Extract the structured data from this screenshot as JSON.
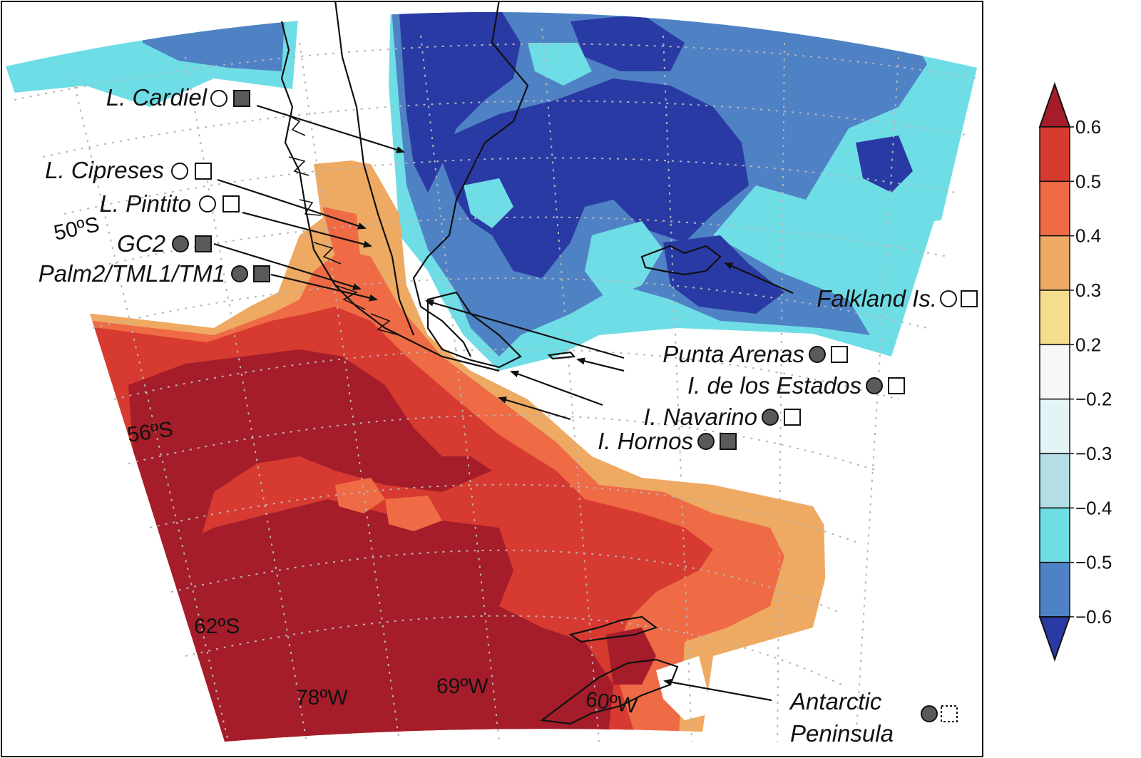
{
  "coordinate_labels": {
    "lat_50": "50ºS",
    "lat_56": "56ºS",
    "lat_62": "62ºS",
    "lon_78": "78ºW",
    "lon_69": "69ºW",
    "lon_60": "60ºW"
  },
  "sites": [
    {
      "label": "L. Cardiel",
      "circle": "open",
      "square": "filled"
    },
    {
      "label": "L. Cipreses",
      "circle": "open",
      "square": "open"
    },
    {
      "label": "L. Pintito",
      "circle": "open",
      "square": "open"
    },
    {
      "label": "GC2",
      "circle": "filled",
      "square": "filled"
    },
    {
      "label": "Palm2/TML1/TM1",
      "circle": "filled",
      "square": "filled"
    },
    {
      "label": "Falkland Is.",
      "circle": "open",
      "square": "open"
    },
    {
      "label": "Punta Arenas",
      "circle": "filled",
      "square": "open"
    },
    {
      "label": "I. de los Estados",
      "circle": "filled",
      "square": "open"
    },
    {
      "label": "I. Navarino",
      "circle": "filled",
      "square": "open"
    },
    {
      "label": "I. Hornos",
      "circle": "filled",
      "square": "filled"
    },
    {
      "label": "Antarctic",
      "label2": "Peninsula",
      "circle": "filled",
      "square": "dashed"
    }
  ],
  "colorbar": {
    "ticks": [
      "0.6",
      "0.5",
      "0.4",
      "0.3",
      "0.2",
      "−0.2",
      "−0.3",
      "−0.4",
      "−0.5",
      "−0.6"
    ],
    "colors": [
      "#a51d2a",
      "#d73a30",
      "#ef6b45",
      "#eeaa63",
      "#f4dd8c",
      "#f7f7f7",
      "#e2f4f5",
      "#b4dde4",
      "#6fdde6",
      "#4f82c4",
      "#2a3aa4"
    ]
  },
  "colors": {
    "ocean_dark_red": "#a51d2a",
    "ocean_red": "#d73a30",
    "ocean_orange": "#ef6b45",
    "ocean_tan": "#eeaa63",
    "blue_dark": "#2a3aa4",
    "blue_mid": "#4f82c4",
    "cyan": "#6fdde6",
    "marker_fill": "#5a5a5a"
  }
}
